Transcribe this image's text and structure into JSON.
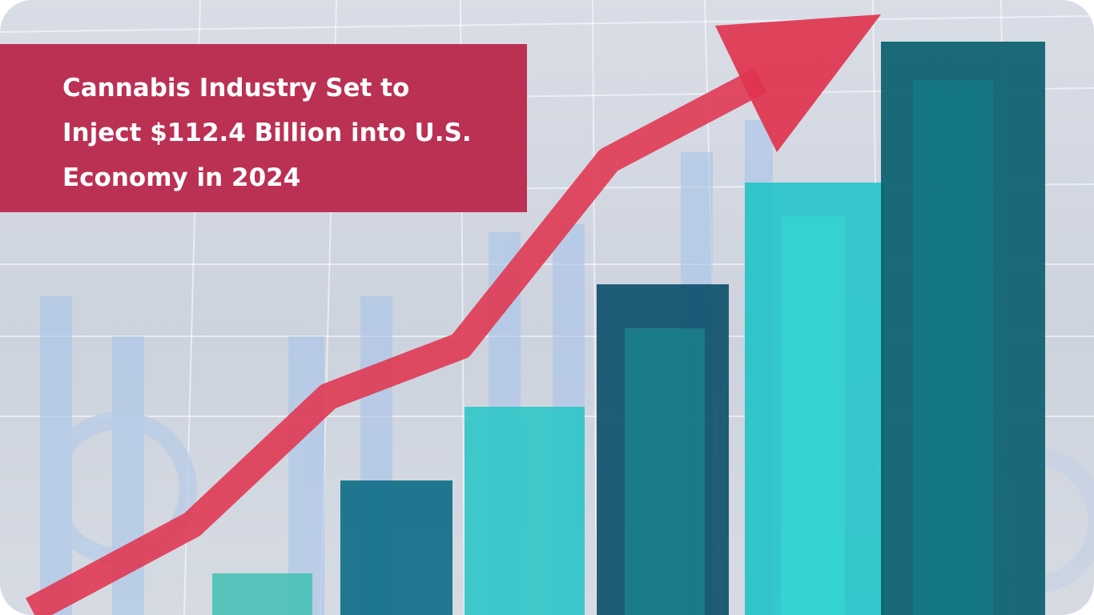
{
  "banner": {
    "title_lines": [
      "Cannabis Industry Set to",
      "Inject $112.4 Billion into U.S.",
      "Economy in 2024"
    ]
  }
}
